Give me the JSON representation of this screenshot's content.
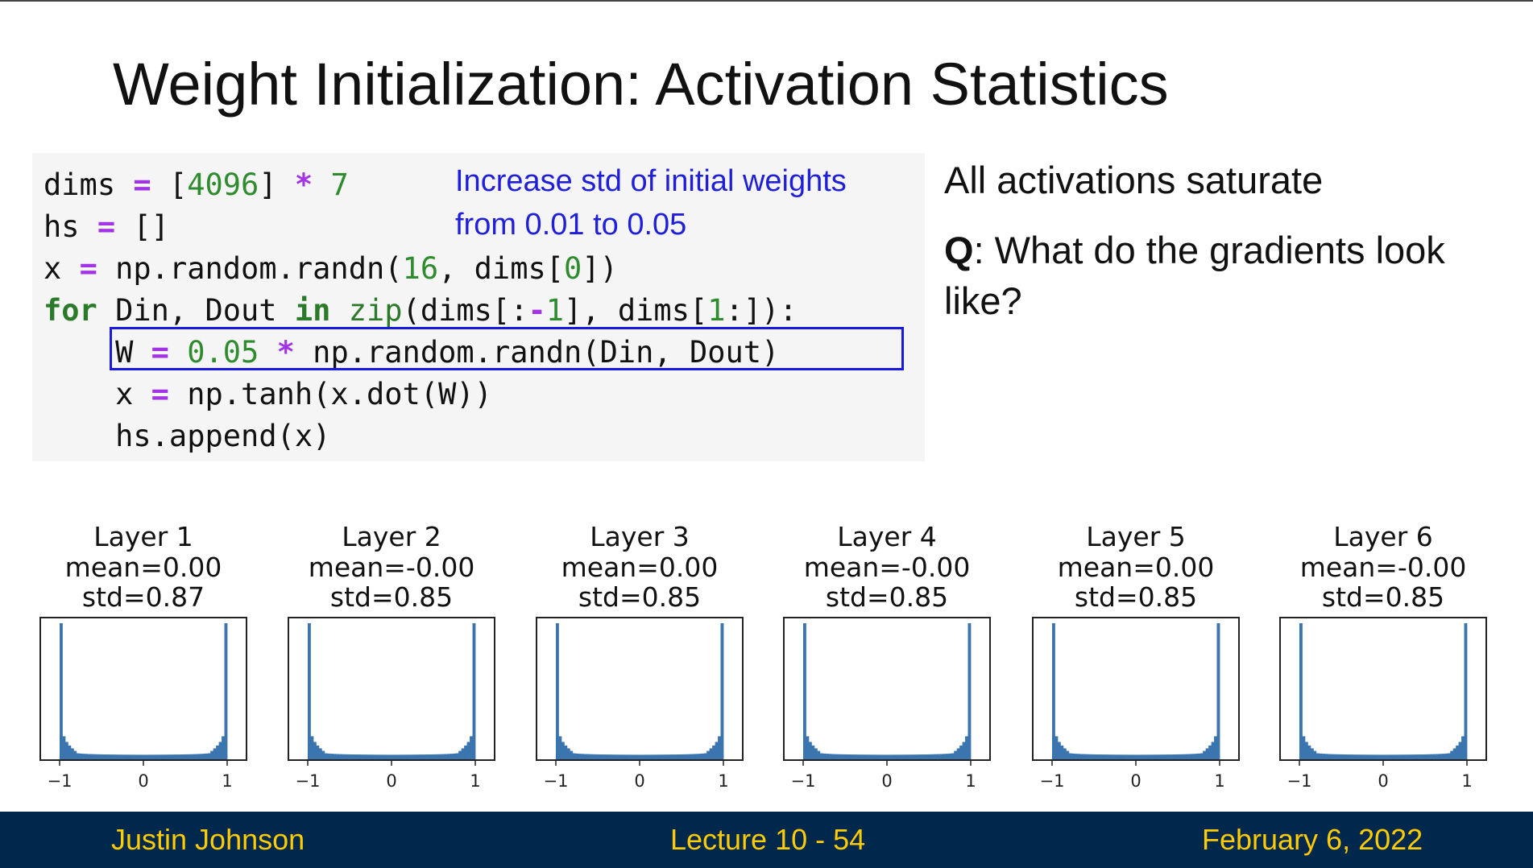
{
  "slide": {
    "title": "Weight Initialization: Activation Statistics",
    "note_line1": "Increase std of initial weights",
    "note_line2": "from 0.01 to 0.05",
    "side_text1": "All activations saturate",
    "side_q_label": "Q",
    "side_q_text": ": What do the gradients look like?"
  },
  "code": {
    "line1": {
      "a": "dims ",
      "op1": "=",
      "b": " [",
      "n1": "4096",
      "c": "] ",
      "op2": "*",
      "d": " ",
      "n2": "7"
    },
    "line2": {
      "a": "hs ",
      "op1": "=",
      "b": " []"
    },
    "line3": {
      "a": "x ",
      "op1": "=",
      "b": " np.random.randn(",
      "n1": "16",
      "c": ", dims[",
      "n2": "0",
      "d": "])"
    },
    "line4": {
      "kw1": "for",
      "a": " Din, Dout ",
      "kw2": "in",
      "b": " ",
      "fn": "zip",
      "c": "(dims[:",
      "op1": "-",
      "n1": "1",
      "d": "], dims[",
      "n2": "1",
      "e": ":]):"
    },
    "line5": {
      "indent": "    ",
      "a": "W ",
      "op1": "=",
      "b": " ",
      "n1": "0.05",
      "c": " ",
      "op2": "*",
      "d": " np.random.randn(Din, Dout)"
    },
    "line6": {
      "indent": "    ",
      "a": "x ",
      "op1": "=",
      "b": " np.tanh(x.dot(W))"
    },
    "line7": {
      "indent": "    ",
      "a": "hs.append(x)"
    }
  },
  "chart_data": [
    {
      "type": "bar",
      "title": "Layer 1",
      "subtitle1": "mean=0.00",
      "subtitle2": "std=0.87",
      "xlim": [
        -1,
        1
      ],
      "xticks": [
        "−1",
        "0",
        "1"
      ],
      "distribution": "bimodal, saturated at -1 and 1",
      "edge_peak_relative": 1.0,
      "center_level_relative": 0.03
    },
    {
      "type": "bar",
      "title": "Layer 2",
      "subtitle1": "mean=-0.00",
      "subtitle2": "std=0.85",
      "xlim": [
        -1,
        1
      ],
      "xticks": [
        "−1",
        "0",
        "1"
      ],
      "distribution": "bimodal, saturated at -1 and 1",
      "edge_peak_relative": 1.0,
      "center_level_relative": 0.03
    },
    {
      "type": "bar",
      "title": "Layer 3",
      "subtitle1": "mean=0.00",
      "subtitle2": "std=0.85",
      "xlim": [
        -1,
        1
      ],
      "xticks": [
        "−1",
        "0",
        "1"
      ],
      "distribution": "bimodal, saturated at -1 and 1",
      "edge_peak_relative": 1.0,
      "center_level_relative": 0.03
    },
    {
      "type": "bar",
      "title": "Layer 4",
      "subtitle1": "mean=-0.00",
      "subtitle2": "std=0.85",
      "xlim": [
        -1,
        1
      ],
      "xticks": [
        "−1",
        "0",
        "1"
      ],
      "distribution": "bimodal, saturated at -1 and 1",
      "edge_peak_relative": 1.0,
      "center_level_relative": 0.03
    },
    {
      "type": "bar",
      "title": "Layer 5",
      "subtitle1": "mean=0.00",
      "subtitle2": "std=0.85",
      "xlim": [
        -1,
        1
      ],
      "xticks": [
        "−1",
        "0",
        "1"
      ],
      "distribution": "bimodal, saturated at -1 and 1",
      "edge_peak_relative": 1.0,
      "center_level_relative": 0.03
    },
    {
      "type": "bar",
      "title": "Layer 6",
      "subtitle1": "mean=-0.00",
      "subtitle2": "std=0.85",
      "xlim": [
        -1,
        1
      ],
      "xticks": [
        "−1",
        "0",
        "1"
      ],
      "distribution": "bimodal, saturated at -1 and 1",
      "edge_peak_relative": 1.0,
      "center_level_relative": 0.03
    }
  ],
  "colors": {
    "histogram": "#3a75b0",
    "footer_bg": "#00274c",
    "footer_text": "#ffcb05",
    "note": "#1f1fd9",
    "highlight_box": "#1a1adf"
  },
  "footer": {
    "left": "Justin Johnson",
    "center": "Lecture 10 - 54",
    "right": "February 6, 2022"
  }
}
